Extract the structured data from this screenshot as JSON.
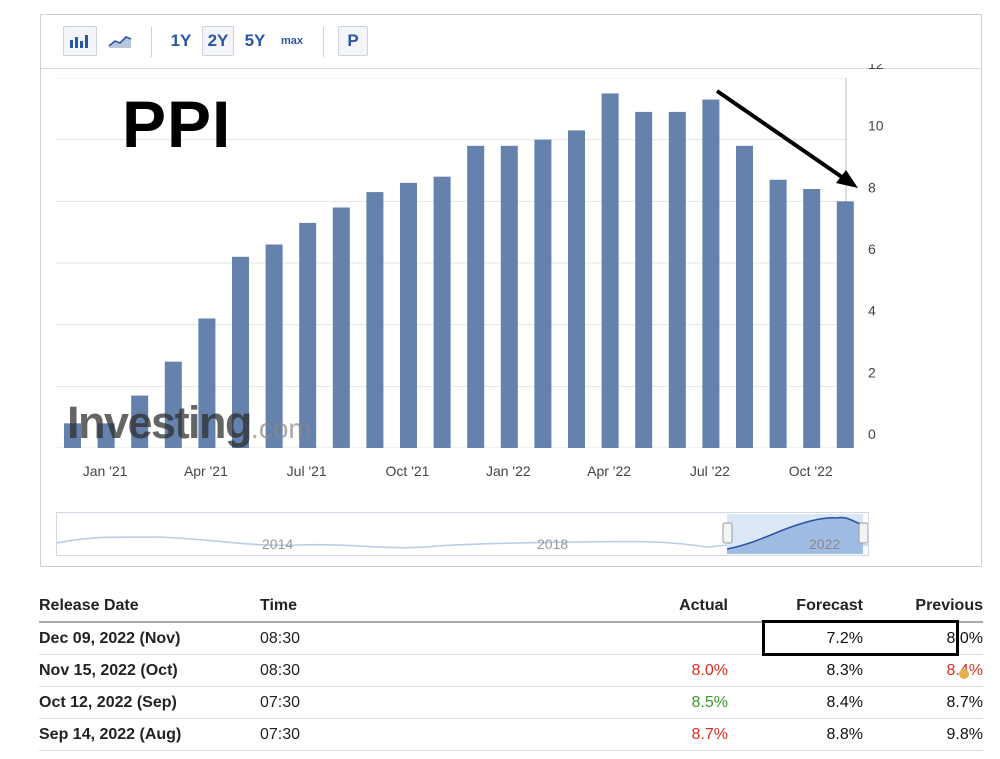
{
  "toolbar": {
    "bar_chart_icon": "bar-chart-icon",
    "area_chart_icon": "area-chart-icon",
    "range_1y": "1Y",
    "range_2y": "2Y",
    "range_5y": "5Y",
    "range_max": "max",
    "p_button": "P",
    "active_range": "2Y"
  },
  "annotation": {
    "title": "PPI",
    "arrow_color": "#000000"
  },
  "watermark": {
    "brand": "Investing",
    "suffix": ".com"
  },
  "navigator": {
    "labels": [
      "2014",
      "2018",
      "2022"
    ]
  },
  "chart_data": {
    "type": "bar",
    "series_color": "#6482ac",
    "x_ticks": [
      "Jan '21",
      "Apr '21",
      "Jul '21",
      "Oct '21",
      "Jan '22",
      "Apr '22",
      "Jul '22",
      "Oct '22"
    ],
    "categories": [
      "Dec '20",
      "Jan '21",
      "Feb '21",
      "Mar '21",
      "Apr '21",
      "May '21",
      "Jun '21",
      "Jul '21",
      "Aug '21",
      "Sep '21",
      "Oct '21",
      "Nov '21",
      "Dec '21",
      "Jan '22",
      "Feb '22",
      "Mar '22",
      "Apr '22",
      "May '22",
      "Jun '22",
      "Jul '22",
      "Aug '22",
      "Sep '22",
      "Oct '22",
      "Nov '22"
    ],
    "values": [
      0.8,
      0.8,
      1.7,
      2.8,
      4.2,
      6.2,
      6.6,
      7.3,
      7.8,
      8.3,
      8.6,
      8.8,
      9.8,
      9.8,
      10.0,
      10.3,
      11.5,
      10.9,
      10.9,
      11.3,
      9.8,
      8.7,
      8.4,
      8.0
    ],
    "y_ticks": [
      0,
      2,
      4,
      6,
      8,
      10,
      12
    ],
    "ylim": [
      0,
      12
    ],
    "y_axis_position": "right",
    "grid": true
  },
  "table": {
    "headers": {
      "release_date": "Release Date",
      "time": "Time",
      "actual": "Actual",
      "forecast": "Forecast",
      "previous": "Previous"
    },
    "rows": [
      {
        "release_date": "Dec 09, 2022 (Nov)",
        "time": "08:30",
        "actual": "",
        "actual_color": "black",
        "forecast": "7.2%",
        "previous": "8.0%",
        "previous_color": "black"
      },
      {
        "release_date": "Nov 15, 2022 (Oct)",
        "time": "08:30",
        "actual": "8.0%",
        "actual_color": "red",
        "forecast": "8.3%",
        "previous": "8.4%",
        "previous_color": "red"
      },
      {
        "release_date": "Oct 12, 2022 (Sep)",
        "time": "07:30",
        "actual": "8.5%",
        "actual_color": "green",
        "forecast": "8.4%",
        "previous": "8.7%",
        "previous_color": "black"
      },
      {
        "release_date": "Sep 14, 2022 (Aug)",
        "time": "07:30",
        "actual": "8.7%",
        "actual_color": "red",
        "forecast": "8.8%",
        "previous": "9.8%",
        "previous_color": "black"
      }
    ]
  }
}
